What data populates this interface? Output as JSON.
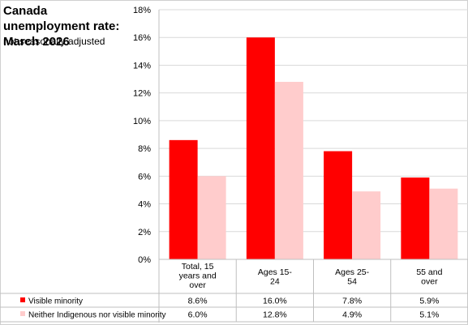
{
  "chart_data": {
    "type": "bar",
    "title": "Canada unemployment rate: March 2026",
    "subtitle": "not seasonally adjusted",
    "categories": [
      [
        "Total, 15",
        "years and",
        "over"
      ],
      [
        "Ages 15-",
        "24"
      ],
      [
        "Ages 25-",
        "54"
      ],
      [
        "55 and",
        "over"
      ]
    ],
    "series": [
      {
        "name": "Visible minority",
        "values": [
          8.6,
          16.0,
          7.8,
          5.9
        ],
        "labels": [
          "8.6%",
          "16.0%",
          "7.8%",
          "5.9%"
        ],
        "color": "#ff0000"
      },
      {
        "name": "Neither Indigenous nor visible minority",
        "values": [
          6.0,
          12.8,
          4.9,
          5.1
        ],
        "labels": [
          "6.0%",
          "12.8%",
          "4.9%",
          "5.1%"
        ],
        "color": "#ffcccc"
      }
    ],
    "ylim": [
      0,
      18
    ],
    "yticks": [
      0,
      2,
      4,
      6,
      8,
      10,
      12,
      14,
      16,
      18
    ],
    "ytick_labels": [
      "0%",
      "2%",
      "4%",
      "6%",
      "8%",
      "10%",
      "12%",
      "14%",
      "16%",
      "18%"
    ],
    "grid": true,
    "legend": "data-table-below"
  }
}
